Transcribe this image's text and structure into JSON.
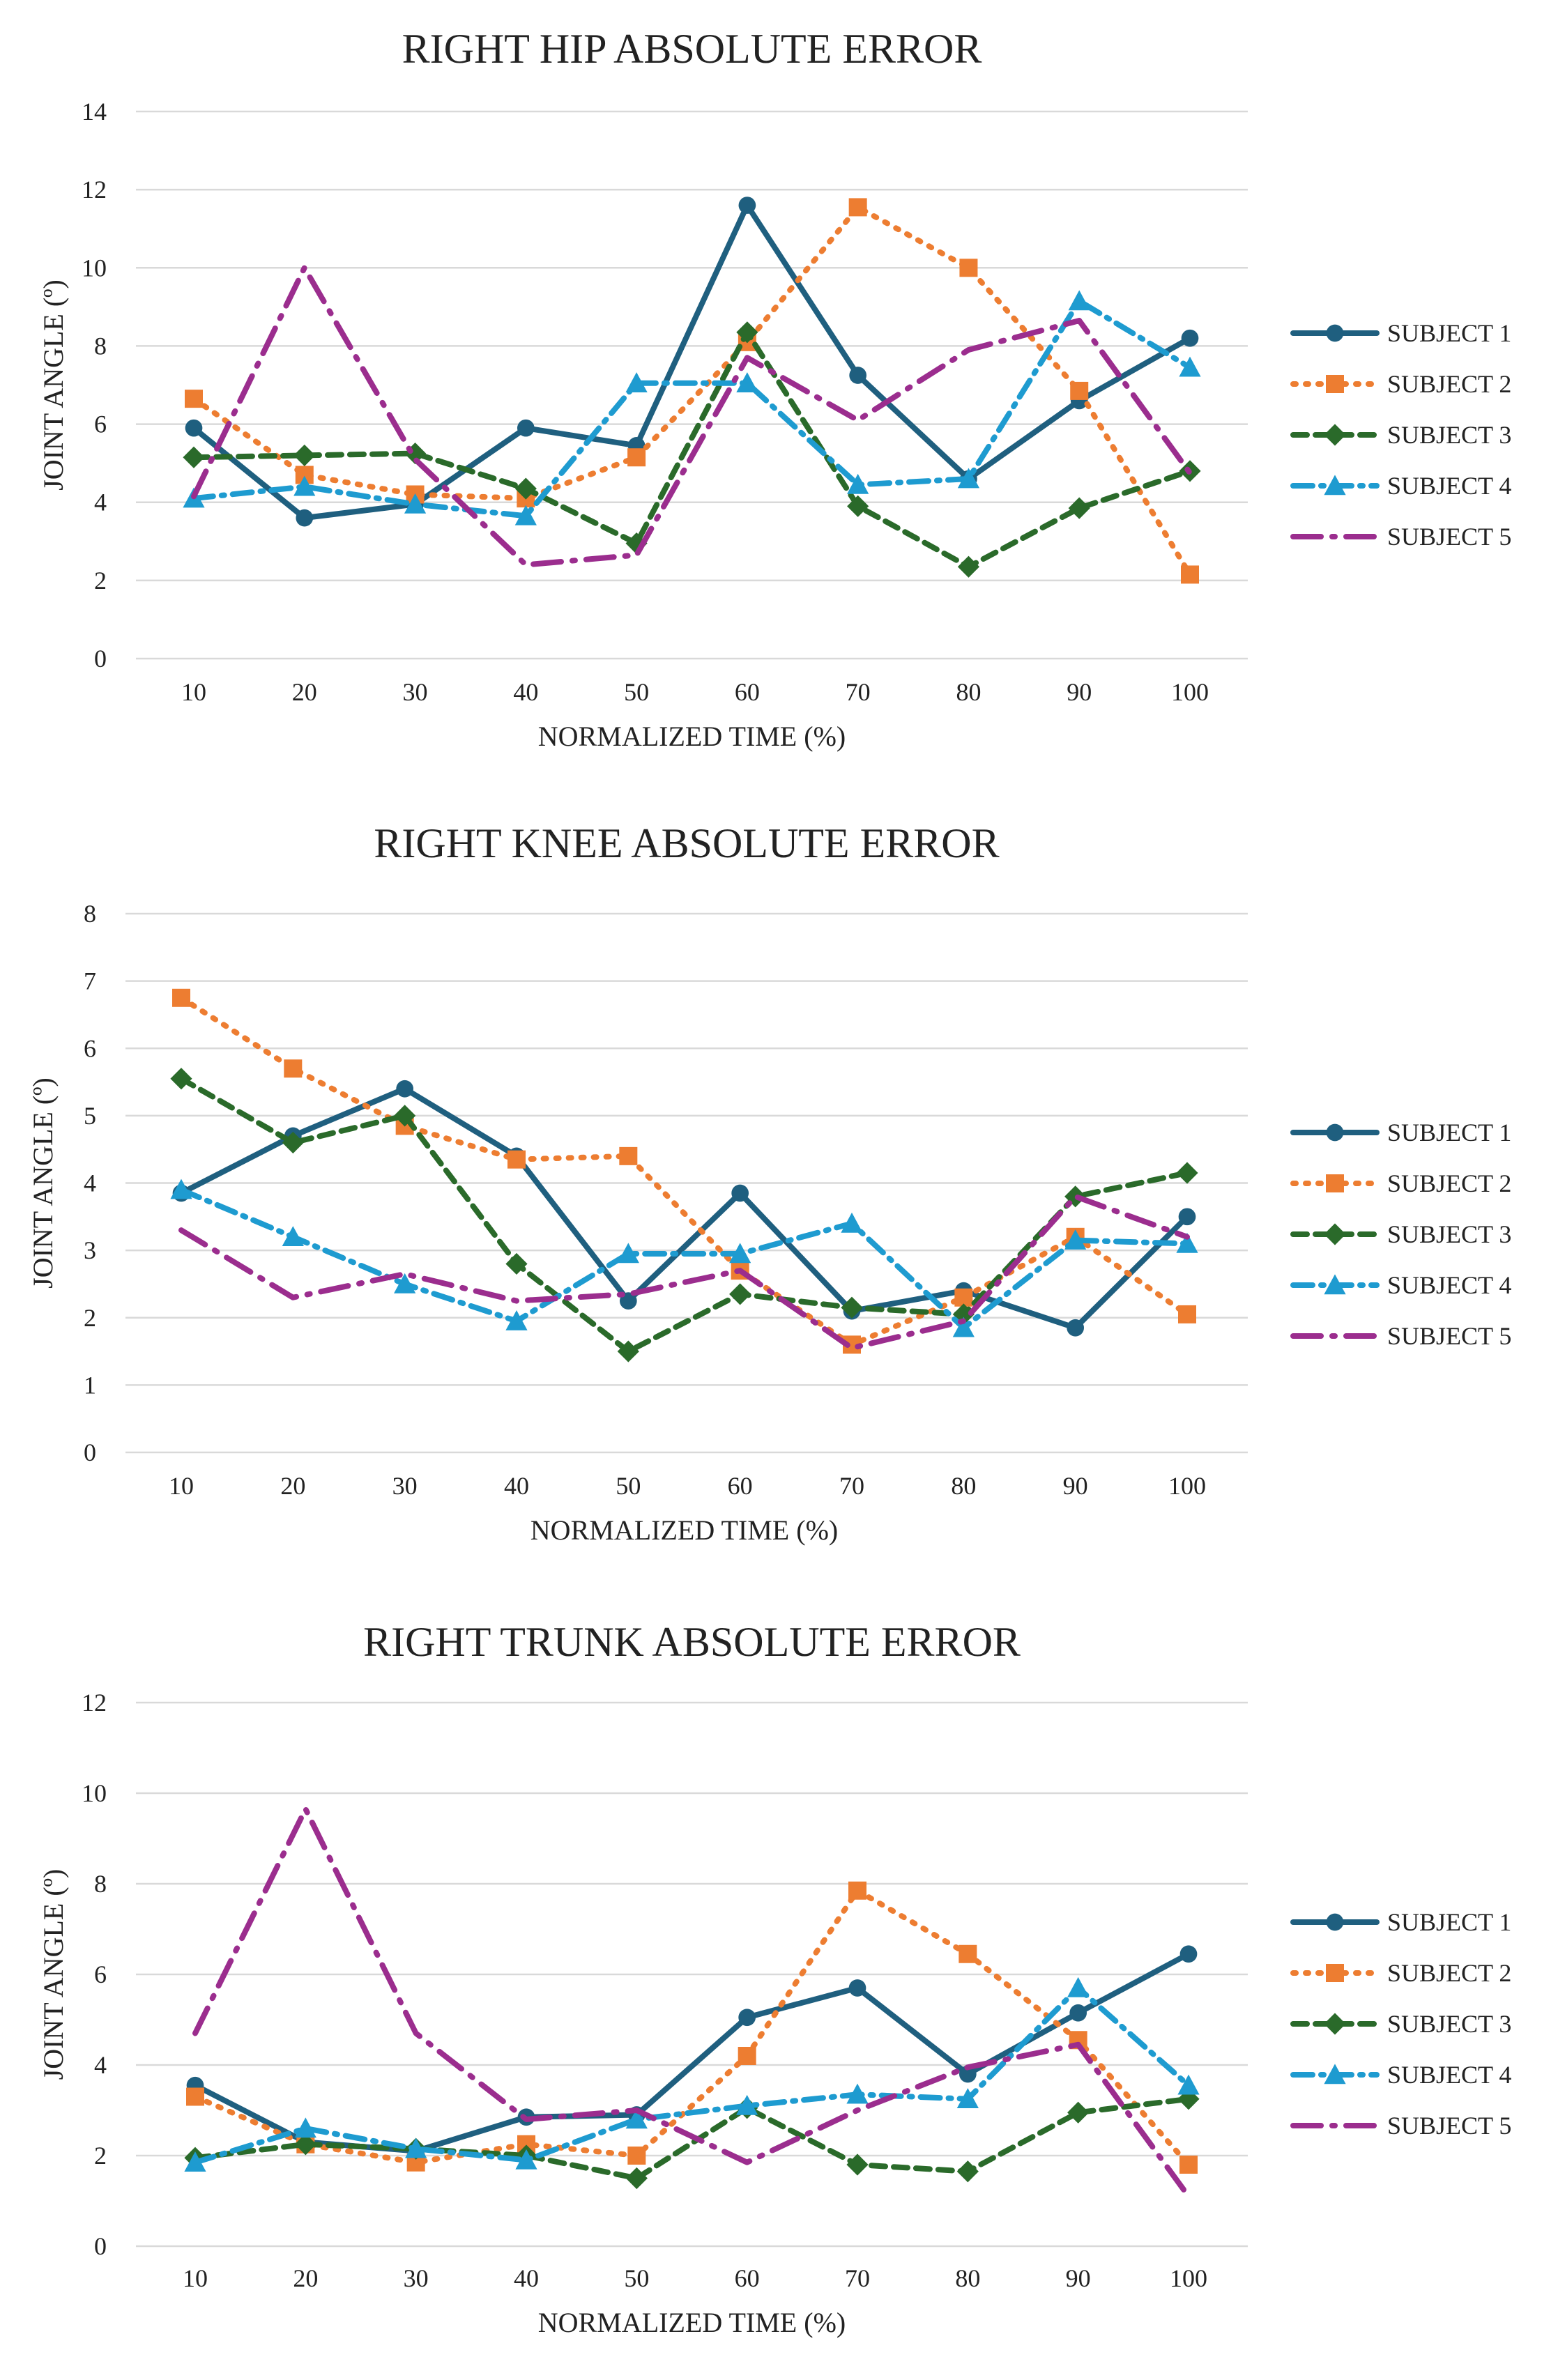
{
  "chart_data": [
    {
      "type": "line",
      "title": "RIGHT HIP ABSOLUTE ERROR",
      "xlabel": "NORMALIZED TIME (%)",
      "ylabel": "JOINT ANGLE (º)",
      "x": [
        10,
        20,
        30,
        40,
        50,
        60,
        70,
        80,
        90,
        100
      ],
      "x_tick_labels": [
        "10",
        "20",
        "30",
        "40",
        "50",
        "60",
        "70",
        "80",
        "90",
        "100"
      ],
      "ylim": [
        0,
        14
      ],
      "y_ticks": [
        0,
        2,
        4,
        6,
        8,
        10,
        12,
        14
      ],
      "y_tick_labels": [
        "0",
        "2",
        "4",
        "6",
        "8",
        "10",
        "12",
        "14"
      ],
      "grid": true,
      "legend_position": "right",
      "series": [
        {
          "name": "SUBJECT 1",
          "values": [
            5.9,
            3.6,
            3.95,
            5.9,
            5.45,
            11.6,
            7.25,
            4.6,
            6.6,
            8.2
          ]
        },
        {
          "name": "SUBJECT 2",
          "values": [
            6.65,
            4.7,
            4.2,
            4.1,
            5.15,
            8.1,
            11.55,
            10.0,
            6.85,
            2.15
          ]
        },
        {
          "name": "SUBJECT 3",
          "values": [
            5.15,
            5.2,
            5.25,
            4.35,
            2.95,
            8.35,
            3.9,
            2.35,
            3.85,
            4.8
          ]
        },
        {
          "name": "SUBJECT 4",
          "values": [
            4.1,
            4.4,
            3.95,
            3.65,
            7.05,
            7.05,
            4.45,
            4.6,
            9.15,
            7.45
          ]
        },
        {
          "name": "SUBJECT 5",
          "values": [
            4.15,
            10.0,
            5.1,
            2.4,
            2.65,
            7.7,
            6.1,
            7.9,
            8.65,
            4.75
          ]
        }
      ]
    },
    {
      "type": "line",
      "title": "RIGHT KNEE ABSOLUTE ERROR",
      "xlabel": "NORMALIZED TIME (%)",
      "ylabel": "JOINT ANGLE (º)",
      "x": [
        10,
        20,
        30,
        40,
        50,
        60,
        70,
        80,
        90,
        100
      ],
      "x_tick_labels": [
        "10",
        "20",
        "30",
        "40",
        "50",
        "60",
        "70",
        "80",
        "90",
        "100"
      ],
      "ylim": [
        0,
        8
      ],
      "y_ticks": [
        0,
        1,
        2,
        3,
        4,
        5,
        6,
        7,
        8
      ],
      "y_tick_labels": [
        "0",
        "1",
        "2",
        "3",
        "4",
        "5",
        "6",
        "7",
        "8"
      ],
      "grid": true,
      "legend_position": "right",
      "series": [
        {
          "name": "SUBJECT 1",
          "values": [
            3.85,
            4.7,
            5.4,
            4.4,
            2.25,
            3.85,
            2.1,
            2.4,
            1.85,
            3.5
          ]
        },
        {
          "name": "SUBJECT 2",
          "values": [
            6.75,
            5.7,
            4.85,
            4.35,
            4.4,
            2.7,
            1.6,
            2.3,
            3.2,
            2.05
          ]
        },
        {
          "name": "SUBJECT 3",
          "values": [
            5.55,
            4.6,
            5.0,
            2.8,
            1.5,
            2.35,
            2.15,
            2.05,
            3.8,
            4.15
          ]
        },
        {
          "name": "SUBJECT 4",
          "values": [
            3.9,
            3.2,
            2.5,
            1.95,
            2.95,
            2.95,
            3.4,
            1.85,
            3.15,
            3.1
          ]
        },
        {
          "name": "SUBJECT 5",
          "values": [
            3.3,
            2.3,
            2.65,
            2.25,
            2.35,
            2.7,
            1.55,
            1.95,
            3.8,
            3.2
          ]
        }
      ]
    },
    {
      "type": "line",
      "title": "RIGHT TRUNK ABSOLUTE ERROR",
      "xlabel": "NORMALIZED TIME (%)",
      "ylabel": "JOINT ANGLE (º)",
      "x": [
        10,
        20,
        30,
        40,
        50,
        60,
        70,
        80,
        90,
        100
      ],
      "x_tick_labels": [
        "10",
        "20",
        "30",
        "40",
        "50",
        "60",
        "70",
        "80",
        "90",
        "100"
      ],
      "ylim": [
        0,
        12
      ],
      "y_ticks": [
        0,
        2,
        4,
        6,
        8,
        10,
        12
      ],
      "y_tick_labels": [
        "0",
        "2",
        "4",
        "6",
        "8",
        "10",
        "12"
      ],
      "grid": true,
      "legend_position": "right",
      "series": [
        {
          "name": "SUBJECT 1",
          "values": [
            3.55,
            2.3,
            2.1,
            2.85,
            2.9,
            5.05,
            5.7,
            3.8,
            5.15,
            6.45
          ]
        },
        {
          "name": "SUBJECT 2",
          "values": [
            3.3,
            2.25,
            1.85,
            2.25,
            2.0,
            4.2,
            7.85,
            6.45,
            4.55,
            1.8
          ]
        },
        {
          "name": "SUBJECT 3",
          "values": [
            1.95,
            2.25,
            2.15,
            2.0,
            1.5,
            3.05,
            1.8,
            1.65,
            2.95,
            3.25
          ]
        },
        {
          "name": "SUBJECT 4",
          "values": [
            1.85,
            2.6,
            2.15,
            1.9,
            2.8,
            3.1,
            3.35,
            3.25,
            5.7,
            3.55
          ]
        },
        {
          "name": "SUBJECT 5",
          "values": [
            4.7,
            9.65,
            4.7,
            2.8,
            3.0,
            1.85,
            3.0,
            3.95,
            4.45,
            1.1
          ]
        }
      ]
    }
  ],
  "series_styles": [
    {
      "color": "#1F5F7F",
      "dash": "",
      "marker": "circle"
    },
    {
      "color": "#ED7D31",
      "dash": "4 14",
      "marker": "square"
    },
    {
      "color": "#2A6A2A",
      "dash": "20 12",
      "marker": "diamond"
    },
    {
      "color": "#1E9BD0",
      "dash": "28 12 4 12",
      "marker": "triangle"
    },
    {
      "color": "#9B2D8E",
      "dash": "40 16 4 16",
      "marker": "none"
    }
  ]
}
